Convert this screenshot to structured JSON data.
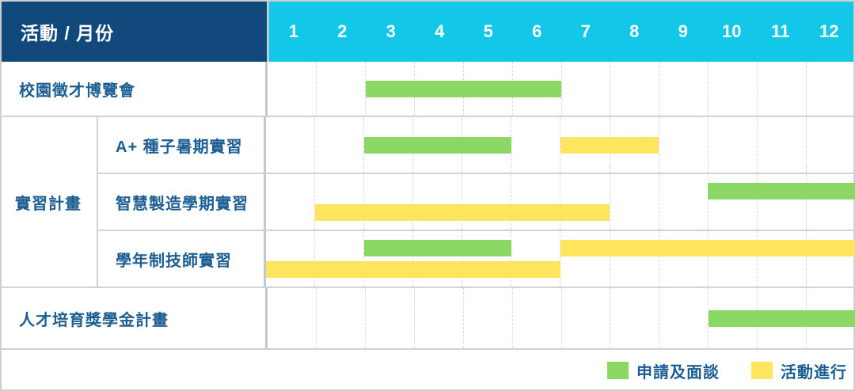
{
  "header": {
    "corner_label": "活動 / 月份",
    "months": [
      "1",
      "2",
      "3",
      "4",
      "5",
      "6",
      "7",
      "8",
      "9",
      "10",
      "11",
      "12"
    ]
  },
  "group": {
    "label": "實習計畫"
  },
  "rows": [
    {
      "label": "校園徵才博覽會",
      "group": null,
      "lanes": [
        [
          {
            "color": "green",
            "start": 3,
            "end": 6
          }
        ]
      ]
    },
    {
      "label": "A+ 種子暑期實習",
      "group": "實習計畫",
      "lanes": [
        [
          {
            "color": "green",
            "start": 3,
            "end": 5
          },
          {
            "color": "yellow",
            "start": 7,
            "end": 8
          }
        ]
      ]
    },
    {
      "label": "智慧製造學期實習",
      "group": "實習計畫",
      "lanes": [
        [
          {
            "color": "green",
            "start": 10,
            "end": 12
          }
        ],
        [
          {
            "color": "yellow",
            "start": 2,
            "end": 7
          }
        ]
      ]
    },
    {
      "label": "學年制技師實習",
      "group": "實習計畫",
      "lanes": [
        [
          {
            "color": "green",
            "start": 3,
            "end": 5
          },
          {
            "color": "yellow",
            "start": 7,
            "end": 12
          }
        ],
        [
          {
            "color": "yellow",
            "start": 1,
            "end": 6
          }
        ]
      ]
    },
    {
      "label": "人才培育獎學金計畫",
      "group": null,
      "lanes": [
        [
          {
            "color": "green",
            "start": 10,
            "end": 12
          }
        ]
      ]
    }
  ],
  "legend": [
    {
      "key": "green",
      "label": "申請及面談",
      "color": "#8bd964"
    },
    {
      "key": "yellow",
      "label": "活動進行",
      "color": "#ffe45e"
    }
  ],
  "colors": {
    "header_bg": "#11497d",
    "month_header_bg": "#12c7e8",
    "label_text": "#1b5e93",
    "bar_green": "#8bd964",
    "bar_yellow": "#ffe45e",
    "grid_dashed_line": "#d9d9d9",
    "row_separator": "#d2d2d2",
    "outer_border": "#cfcfcf"
  },
  "chart_data": {
    "type": "bar",
    "subtype": "gantt-schedule",
    "title": "活動 / 月份",
    "xlabel": "月份",
    "x_ticks": [
      1,
      2,
      3,
      4,
      5,
      6,
      7,
      8,
      9,
      10,
      11,
      12
    ],
    "x_range": [
      1,
      12
    ],
    "grid": true,
    "legend_position": "bottom-right",
    "phases": [
      "申請及面談",
      "活動進行"
    ],
    "tasks": [
      {
        "name": "校園徵才博覽會",
        "group": null,
        "segments": [
          {
            "phase": "申請及面談",
            "start_month": 3,
            "end_month": 6
          }
        ]
      },
      {
        "name": "A+ 種子暑期實習",
        "group": "實習計畫",
        "segments": [
          {
            "phase": "申請及面談",
            "start_month": 3,
            "end_month": 5
          },
          {
            "phase": "活動進行",
            "start_month": 7,
            "end_month": 8
          }
        ]
      },
      {
        "name": "智慧製造學期實習",
        "group": "實習計畫",
        "segments": [
          {
            "phase": "申請及面談",
            "start_month": 10,
            "end_month": 12
          },
          {
            "phase": "活動進行",
            "start_month": 2,
            "end_month": 7
          }
        ]
      },
      {
        "name": "學年制技師實習",
        "group": "實習計畫",
        "segments": [
          {
            "phase": "申請及面談",
            "start_month": 3,
            "end_month": 5
          },
          {
            "phase": "活動進行",
            "start_month": 7,
            "end_month": 12
          },
          {
            "phase": "活動進行",
            "start_month": 1,
            "end_month": 6
          }
        ]
      },
      {
        "name": "人才培育獎學金計畫",
        "group": null,
        "segments": [
          {
            "phase": "申請及面談",
            "start_month": 10,
            "end_month": 12
          }
        ]
      }
    ]
  }
}
